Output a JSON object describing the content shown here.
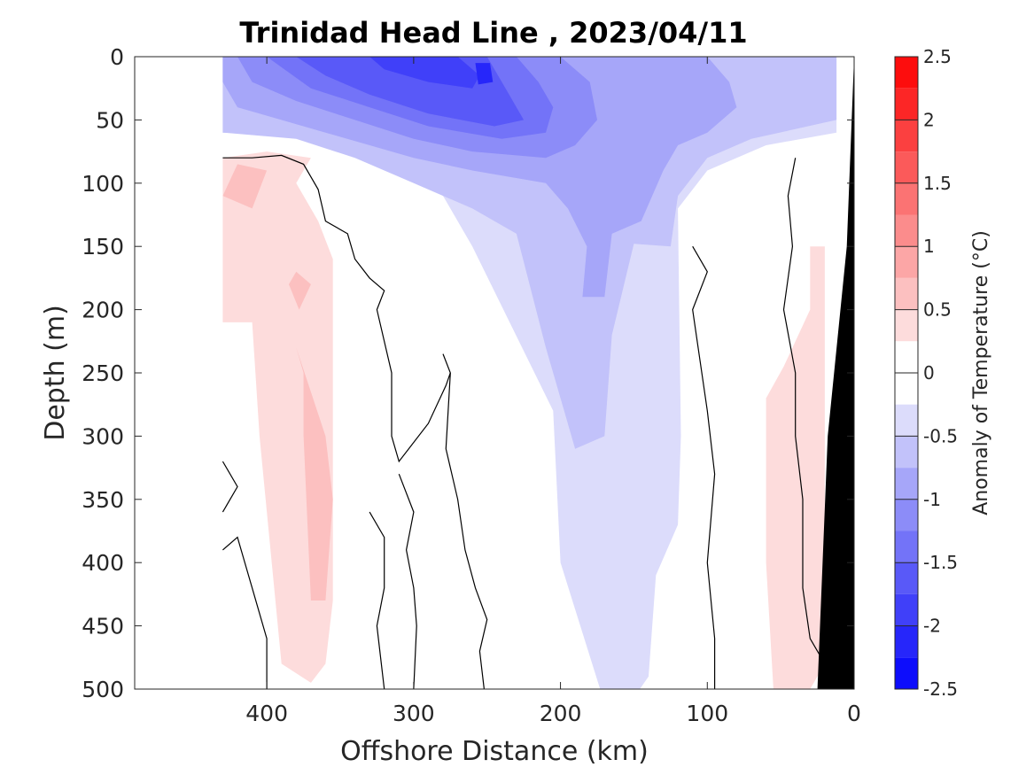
{
  "chart_data": {
    "type": "heatmap",
    "subtype": "filled-contour section",
    "title": "Trinidad Head Line , 2023/04/11",
    "xlabel": "Offshore Distance (km)",
    "ylabel": "Depth (m)",
    "xlim": [
      490,
      0
    ],
    "x_reversed": true,
    "ylim": [
      0,
      500
    ],
    "y_reversed": true,
    "x_ticks": [
      400,
      300,
      200,
      100,
      0
    ],
    "y_ticks": [
      0,
      50,
      100,
      150,
      200,
      250,
      300,
      350,
      400,
      450,
      500
    ],
    "colorbar": {
      "label": "Anomaly of Temperature (°C)",
      "range": [
        -2.5,
        2.5
      ],
      "ticks": [
        2.5,
        2,
        1.5,
        1,
        0.5,
        0,
        -0.5,
        -1,
        -1.5,
        -2,
        -2.5
      ],
      "tick_labels": [
        "2.5",
        "2",
        "1.5",
        "1",
        "0.5",
        "0",
        "-0.5",
        "-1",
        "-1.5",
        "-2",
        "-2.5"
      ],
      "levels_step": 0.25,
      "colors_pos": [
        "#ffffff",
        "#fddcdc",
        "#fcc0c0",
        "#fca6a6",
        "#fb8c8c",
        "#fb7373",
        "#fb5a5a",
        "#fb4040",
        "#fc2626",
        "#fd0d0d",
        "#ff0000"
      ],
      "colors_neg": [
        "#ffffff",
        "#dcdcfb",
        "#c2c2fa",
        "#a6a6f9",
        "#8c8cf8",
        "#7373f8",
        "#5959f8",
        "#4040f9",
        "#2626fa",
        "#0d0dfc",
        "#0000ff"
      ]
    },
    "contour_fields": [
      {
        "level": -0.25,
        "region": [
          [
            430,
            0
          ],
          [
            12,
            0
          ],
          [
            12,
            60
          ],
          [
            60,
            70
          ],
          [
            100,
            90
          ],
          [
            120,
            120
          ],
          [
            118,
            300
          ],
          [
            120,
            370
          ],
          [
            135,
            410
          ],
          [
            140,
            490
          ],
          [
            146,
            500
          ],
          [
            173,
            500
          ],
          [
            200,
            400
          ],
          [
            205,
            280
          ],
          [
            260,
            150
          ],
          [
            290,
            90
          ],
          [
            320,
            60
          ],
          [
            345,
            70
          ],
          [
            380,
            60
          ],
          [
            430,
            60
          ]
        ]
      },
      {
        "level": -0.5,
        "region": [
          [
            430,
            0
          ],
          [
            12,
            0
          ],
          [
            12,
            50
          ],
          [
            70,
            65
          ],
          [
            100,
            80
          ],
          [
            120,
            110
          ],
          [
            125,
            150
          ],
          [
            150,
            148
          ],
          [
            165,
            220
          ],
          [
            170,
            300
          ],
          [
            190,
            310
          ],
          [
            200,
            270
          ],
          [
            210,
            230
          ],
          [
            230,
            140
          ],
          [
            260,
            120
          ],
          [
            300,
            100
          ],
          [
            340,
            80
          ],
          [
            380,
            65
          ],
          [
            430,
            60
          ]
        ]
      },
      {
        "level": -0.75,
        "region": [
          [
            430,
            0
          ],
          [
            330,
            0
          ],
          [
            100,
            0
          ],
          [
            85,
            20
          ],
          [
            80,
            40
          ],
          [
            100,
            60
          ],
          [
            120,
            70
          ],
          [
            130,
            90
          ],
          [
            145,
            130
          ],
          [
            165,
            140
          ],
          [
            170,
            190
          ],
          [
            185,
            190
          ],
          [
            182,
            150
          ],
          [
            195,
            120
          ],
          [
            210,
            100
          ],
          [
            260,
            90
          ],
          [
            300,
            80
          ],
          [
            360,
            60
          ],
          [
            420,
            40
          ],
          [
            430,
            20
          ]
        ]
      },
      {
        "level": -1.0,
        "region": [
          [
            420,
            0
          ],
          [
            200,
            0
          ],
          [
            180,
            20
          ],
          [
            175,
            50
          ],
          [
            190,
            70
          ],
          [
            210,
            80
          ],
          [
            260,
            75
          ],
          [
            300,
            65
          ],
          [
            340,
            50
          ],
          [
            380,
            35
          ],
          [
            410,
            20
          ]
        ]
      },
      {
        "level": -1.25,
        "region": [
          [
            400,
            0
          ],
          [
            230,
            0
          ],
          [
            215,
            20
          ],
          [
            205,
            40
          ],
          [
            210,
            60
          ],
          [
            240,
            65
          ],
          [
            290,
            55
          ],
          [
            330,
            40
          ],
          [
            370,
            25
          ]
        ]
      },
      {
        "level": -1.5,
        "region": [
          [
            380,
            0
          ],
          [
            250,
            0
          ],
          [
            235,
            30
          ],
          [
            225,
            50
          ],
          [
            245,
            55
          ],
          [
            290,
            45
          ],
          [
            330,
            30
          ],
          [
            360,
            15
          ]
        ]
      },
      {
        "level": -1.75,
        "region": [
          [
            330,
            0
          ],
          [
            270,
            0
          ],
          [
            255,
            15
          ],
          [
            260,
            25
          ],
          [
            290,
            20
          ],
          [
            320,
            10
          ]
        ]
      },
      {
        "level": -2.0,
        "region": [
          [
            258,
            5
          ],
          [
            248,
            5
          ],
          [
            246,
            20
          ],
          [
            256,
            22
          ]
        ]
      },
      {
        "level": 0.25,
        "region": [
          [
            430,
            80
          ],
          [
            400,
            75
          ],
          [
            370,
            80
          ],
          [
            380,
            100
          ],
          [
            365,
            130
          ],
          [
            355,
            160
          ],
          [
            355,
            430
          ],
          [
            360,
            480
          ],
          [
            370,
            495
          ],
          [
            390,
            480
          ],
          [
            405,
            300
          ],
          [
            410,
            210
          ],
          [
            430,
            210
          ]
        ]
      },
      {
        "level": 0.25,
        "region": [
          [
            60,
            270
          ],
          [
            48,
            245
          ],
          [
            30,
            200
          ],
          [
            30,
            150
          ],
          [
            20,
            150
          ],
          [
            20,
            480
          ],
          [
            30,
            500
          ],
          [
            55,
            500
          ],
          [
            60,
            400
          ]
        ]
      },
      {
        "level": 0.5,
        "region": [
          [
            420,
            85
          ],
          [
            400,
            90
          ],
          [
            410,
            120
          ],
          [
            430,
            110
          ]
        ]
      },
      {
        "level": 0.5,
        "region": [
          [
            380,
            230
          ],
          [
            360,
            300
          ],
          [
            355,
            350
          ],
          [
            360,
            430
          ],
          [
            370,
            430
          ],
          [
            375,
            300
          ],
          [
            375,
            250
          ]
        ]
      },
      {
        "level": 0.5,
        "region": [
          [
            380,
            170
          ],
          [
            370,
            180
          ],
          [
            378,
            200
          ],
          [
            385,
            180
          ]
        ]
      }
    ],
    "zero_contours": [
      [
        [
          430,
          80
        ],
        [
          410,
          80
        ],
        [
          390,
          78
        ],
        [
          375,
          85
        ],
        [
          370,
          95
        ],
        [
          365,
          105
        ],
        [
          360,
          130
        ],
        [
          345,
          140
        ],
        [
          340,
          160
        ],
        [
          330,
          175
        ],
        [
          320,
          185
        ],
        [
          325,
          200
        ],
        [
          315,
          250
        ],
        [
          315,
          300
        ],
        [
          310,
          320
        ],
        [
          290,
          290
        ],
        [
          278,
          260
        ],
        [
          275,
          250
        ],
        [
          280,
          235
        ]
      ],
      [
        [
          275,
          250
        ],
        [
          278,
          310
        ],
        [
          270,
          350
        ],
        [
          265,
          390
        ],
        [
          258,
          420
        ],
        [
          250,
          445
        ],
        [
          255,
          470
        ],
        [
          252,
          500
        ]
      ],
      [
        [
          330,
          360
        ],
        [
          320,
          380
        ],
        [
          320,
          420
        ],
        [
          325,
          450
        ],
        [
          320,
          500
        ]
      ],
      [
        [
          310,
          330
        ],
        [
          300,
          360
        ],
        [
          305,
          390
        ],
        [
          300,
          420
        ],
        [
          298,
          450
        ],
        [
          300,
          500
        ]
      ],
      [
        [
          430,
          320
        ],
        [
          420,
          340
        ],
        [
          430,
          360
        ]
      ],
      [
        [
          430,
          390
        ],
        [
          420,
          380
        ],
        [
          410,
          420
        ],
        [
          400,
          460
        ],
        [
          400,
          500
        ]
      ],
      [
        [
          110,
          150
        ],
        [
          100,
          170
        ],
        [
          110,
          200
        ],
        [
          105,
          240
        ],
        [
          100,
          280
        ],
        [
          95,
          330
        ],
        [
          100,
          400
        ],
        [
          95,
          460
        ],
        [
          95,
          500
        ]
      ],
      [
        [
          40,
          80
        ],
        [
          45,
          110
        ],
        [
          42,
          150
        ],
        [
          48,
          200
        ],
        [
          40,
          250
        ],
        [
          40,
          300
        ],
        [
          35,
          350
        ],
        [
          35,
          420
        ],
        [
          30,
          460
        ],
        [
          20,
          480
        ]
      ]
    ],
    "land_mask": [
      [
        0,
        0
      ],
      [
        0,
        500
      ],
      [
        25,
        500
      ],
      [
        18,
        300
      ],
      [
        5,
        150
      ],
      [
        0,
        0
      ]
    ]
  }
}
